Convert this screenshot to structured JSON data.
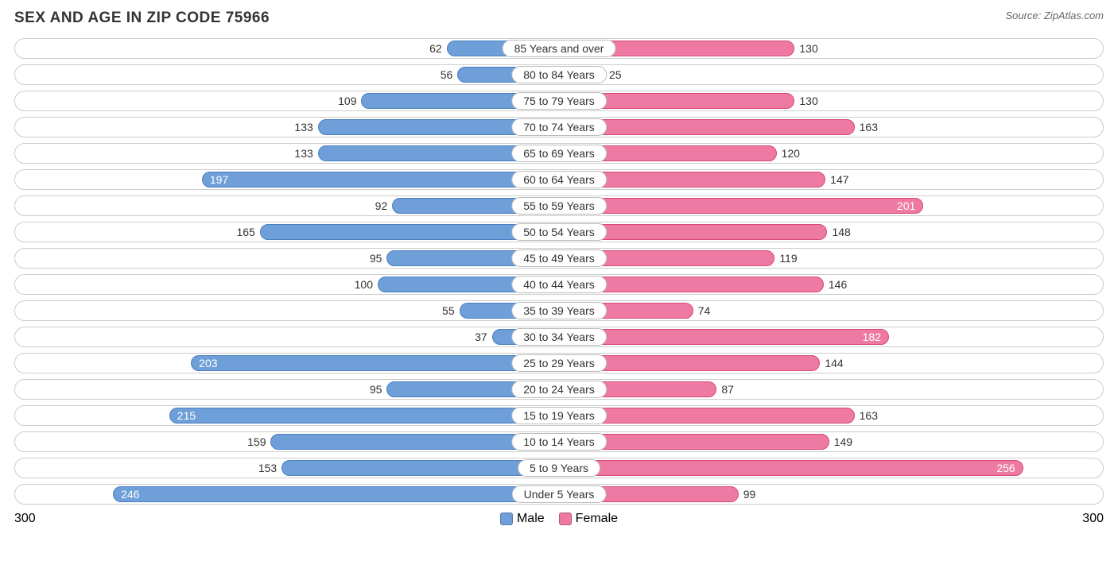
{
  "title": "SEX AND AGE IN ZIP CODE 75966",
  "source": "Source: ZipAtlas.com",
  "chart": {
    "type": "population-pyramid",
    "axis_max": 300,
    "axis_label_left": "300",
    "axis_label_right": "300",
    "male_color": "#6f9fd8",
    "male_border": "#4a7fc0",
    "female_color": "#ee7aa3",
    "female_border": "#d44a78",
    "track_border": "#cccccc",
    "background": "#ffffff",
    "label_fontsize": 14,
    "title_fontsize": 19,
    "inside_label_threshold": 175,
    "legend": {
      "male_label": "Male",
      "female_label": "Female"
    },
    "rows": [
      {
        "category": "85 Years and over",
        "male": 62,
        "female": 130
      },
      {
        "category": "80 to 84 Years",
        "male": 56,
        "female": 25
      },
      {
        "category": "75 to 79 Years",
        "male": 109,
        "female": 130
      },
      {
        "category": "70 to 74 Years",
        "male": 133,
        "female": 163
      },
      {
        "category": "65 to 69 Years",
        "male": 133,
        "female": 120
      },
      {
        "category": "60 to 64 Years",
        "male": 197,
        "female": 147
      },
      {
        "category": "55 to 59 Years",
        "male": 92,
        "female": 201
      },
      {
        "category": "50 to 54 Years",
        "male": 165,
        "female": 148
      },
      {
        "category": "45 to 49 Years",
        "male": 95,
        "female": 119
      },
      {
        "category": "40 to 44 Years",
        "male": 100,
        "female": 146
      },
      {
        "category": "35 to 39 Years",
        "male": 55,
        "female": 74
      },
      {
        "category": "30 to 34 Years",
        "male": 37,
        "female": 182
      },
      {
        "category": "25 to 29 Years",
        "male": 203,
        "female": 144
      },
      {
        "category": "20 to 24 Years",
        "male": 95,
        "female": 87
      },
      {
        "category": "15 to 19 Years",
        "male": 215,
        "female": 163
      },
      {
        "category": "10 to 14 Years",
        "male": 159,
        "female": 149
      },
      {
        "category": "5 to 9 Years",
        "male": 153,
        "female": 256
      },
      {
        "category": "Under 5 Years",
        "male": 246,
        "female": 99
      }
    ]
  }
}
